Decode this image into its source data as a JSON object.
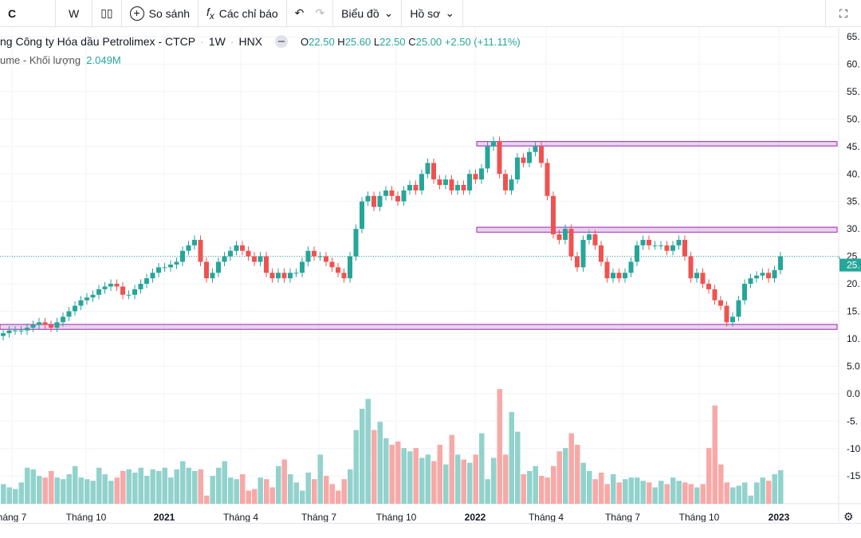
{
  "toolbar": {
    "symbol_fragment": "C",
    "interval": "W",
    "compare": "So sánh",
    "indicators": "Các chỉ báo",
    "chart_menu": "Biểu đồ",
    "profile_menu": "Hồ sơ"
  },
  "legend": {
    "title": "ng Công ty Hóa dầu Petrolimex - CTCP",
    "interval": "1W",
    "exchange": "HNX",
    "open": "22.50",
    "high": "25.60",
    "low": "22.50",
    "close": "25.00",
    "change": "+2.50 (+11.11%)",
    "volume_label": "ume - Khối lượng",
    "volume_value": "2.049M"
  },
  "colors": {
    "up": "#26a69a",
    "down": "#ef5350",
    "vol_up": "#92d2cc",
    "vol_down": "#f7a9a7",
    "zone": "#9c27b0"
  },
  "price_axis": [
    "65.",
    "60.",
    "55.",
    "50.",
    "45.",
    "40.",
    "35.",
    "30.",
    "25.",
    "20.",
    "15.",
    "10.",
    "5.0",
    "0.0",
    "-5.",
    "-10",
    "-15"
  ],
  "last_price_label": "25.",
  "time_axis": [
    {
      "label": "háng 7",
      "bold": false
    },
    {
      "label": "Tháng 10",
      "bold": false
    },
    {
      "label": "2021",
      "bold": true
    },
    {
      "label": "Tháng 4",
      "bold": false
    },
    {
      "label": "Tháng 7",
      "bold": false
    },
    {
      "label": "Tháng 10",
      "bold": false
    },
    {
      "label": "2022",
      "bold": true
    },
    {
      "label": "Tháng 4",
      "bold": false
    },
    {
      "label": "Tháng 7",
      "bold": false
    },
    {
      "label": "Tháng 10",
      "bold": false
    },
    {
      "label": "2023",
      "bold": true
    }
  ],
  "chart_data": {
    "type": "candlestick",
    "closes": [
      11,
      11.5,
      11.5,
      11.5,
      12,
      12.5,
      13,
      12.5,
      12,
      13,
      14,
      15,
      16,
      17,
      17.5,
      18,
      19,
      19.5,
      20,
      19.5,
      18,
      18,
      19,
      20,
      21,
      22,
      23,
      23,
      23.5,
      24,
      26,
      27,
      28,
      24,
      21,
      22,
      24,
      25,
      26,
      27,
      26,
      25,
      24,
      25,
      22,
      21,
      22,
      21,
      22,
      22,
      24,
      26,
      25,
      25,
      24,
      23,
      22,
      21,
      25,
      30,
      35,
      36,
      34,
      36,
      37,
      36,
      35,
      37,
      38,
      37,
      40,
      42,
      39,
      38,
      39,
      37,
      38,
      37,
      40,
      39,
      41,
      45,
      46,
      40,
      37,
      39,
      43,
      42,
      44,
      45,
      42,
      36,
      29,
      28,
      30,
      25,
      23,
      28,
      29,
      27,
      24,
      21,
      22,
      21,
      22,
      24,
      27,
      28,
      27,
      27,
      27,
      26,
      27,
      28,
      25,
      21,
      22,
      20,
      19,
      17,
      16,
      13,
      14,
      17,
      20,
      21,
      21.5,
      22,
      21,
      22.5,
      25
    ],
    "volumes_m": [
      1.2,
      1.0,
      0.9,
      1.3,
      2.2,
      2.1,
      1.7,
      1.6,
      2.0,
      1.6,
      1.5,
      1.8,
      2.3,
      1.6,
      1.5,
      1.4,
      2.2,
      1.8,
      1.4,
      1.6,
      2.0,
      2.1,
      1.9,
      2.2,
      1.7,
      2.1,
      2.0,
      2.2,
      1.6,
      2.1,
      2.6,
      2.2,
      2.0,
      2.1,
      0.5,
      1.7,
      2.2,
      2.6,
      1.6,
      1.5,
      1.8,
      0.8,
      0.9,
      1.6,
      1.5,
      1.0,
      2.3,
      2.7,
      1.8,
      1.3,
      0.8,
      1.9,
      1.5,
      3.0,
      1.7,
      1.2,
      0.8,
      1.5,
      2.1,
      4.5,
      5.8,
      6.4,
      4.5,
      5.0,
      4.0,
      3.6,
      3.8,
      3.4,
      3.2,
      3.4,
      2.8,
      3.0,
      2.6,
      3.6,
      2.4,
      4.2,
      3.0,
      2.7,
      2.5,
      3.0,
      4.3,
      1.5,
      2.8,
      7.0,
      3.0,
      5.6,
      4.4,
      1.8,
      2.0,
      2.3,
      1.7,
      1.6,
      2.3,
      3.2,
      3.4,
      4.3,
      3.6,
      2.5,
      2.0,
      1.5,
      1.9,
      1.2,
      1.8,
      1.3,
      1.5,
      1.6,
      1.6,
      1.4,
      1.3,
      1.0,
      1.4,
      1.2,
      1.6,
      1.4,
      1.3,
      1.2,
      1.0,
      1.2,
      3.4,
      6.0,
      2.4,
      1.3,
      1.0,
      1.1,
      1.3,
      0.5,
      1.3,
      1.6,
      1.4,
      1.8,
      2.05
    ],
    "zones": [
      {
        "from_index": 84,
        "low": 45.1,
        "high": 45.9
      },
      {
        "from_index": 84,
        "low": 29.4,
        "high": 30.3
      },
      {
        "from_index": 0,
        "low": 11.7,
        "high": 12.6
      }
    ],
    "last_price": 25.0,
    "ylim": [
      10,
      65
    ]
  }
}
